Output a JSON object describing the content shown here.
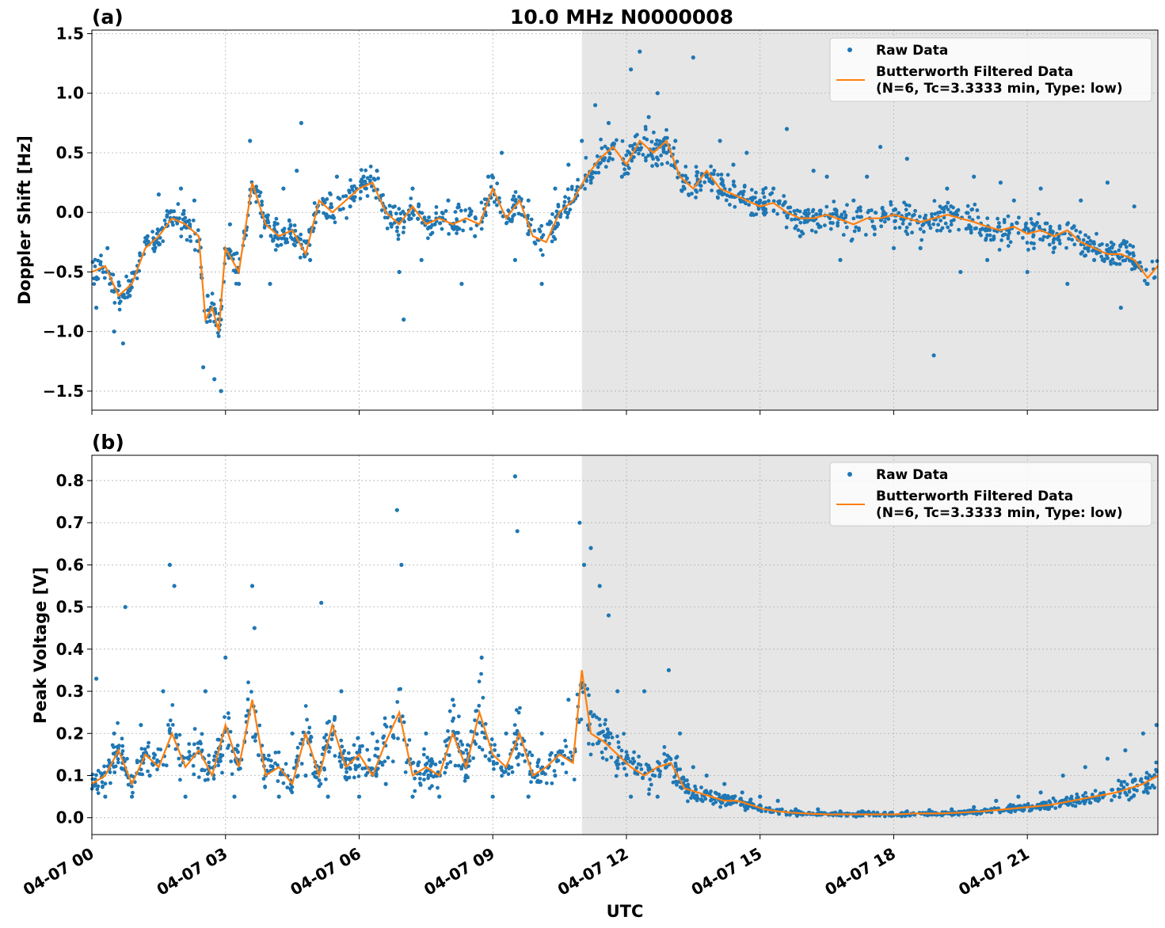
{
  "figure": {
    "title": "10.0 MHz N0000008",
    "xlabel": "UTC",
    "x_tick_labels": [
      "04-07 00",
      "04-07 03",
      "04-07 06",
      "04-07 09",
      "04-07 12",
      "04-07 15",
      "04-07 18",
      "04-07 21"
    ]
  },
  "colors": {
    "raw": "#1f77b4",
    "filtered": "#ff7f0e",
    "shade": "#e6e6e6",
    "grid": "#b0b0b0"
  },
  "legend": {
    "raw_label": "Raw Data",
    "filtered_label_line1": "Butterworth Filtered Data",
    "filtered_label_line2": "(N=6, Tc=3.3333 min, Type: low)",
    "position": "upper right"
  },
  "chart_data": [
    {
      "panel": "(a)",
      "type": "scatter",
      "ylabel": "Doppler Shift [Hz]",
      "xlim_hours_utc": [
        0,
        23.93
      ],
      "ylim": [
        -1.66,
        1.53
      ],
      "y_tick_labels": [
        "1.5",
        "1.0",
        "0.5",
        "0.0",
        "−0.5",
        "−1.0",
        "−1.5"
      ],
      "y_ticks": [
        1.5,
        1.0,
        0.5,
        0.0,
        -0.5,
        -1.0,
        -1.5
      ],
      "grid": true,
      "shaded_interval_hours_utc": [
        11.0,
        23.93
      ],
      "series": [
        {
          "name": "Butterworth Filtered Data",
          "kind": "line",
          "x": [
            0,
            0.3,
            0.6,
            0.9,
            1.2,
            1.5,
            1.8,
            2.1,
            2.4,
            2.55,
            2.7,
            2.85,
            3.0,
            3.3,
            3.6,
            3.9,
            4.2,
            4.5,
            4.8,
            5.1,
            5.4,
            5.7,
            6.0,
            6.3,
            6.6,
            6.9,
            7.2,
            7.5,
            7.8,
            8.1,
            8.4,
            8.7,
            9.0,
            9.3,
            9.6,
            9.9,
            10.2,
            10.5,
            10.8,
            11.1,
            11.4,
            11.7,
            12.0,
            12.3,
            12.6,
            12.9,
            13.2,
            13.5,
            13.8,
            14.1,
            14.4,
            14.7,
            15.0,
            15.3,
            15.6,
            15.9,
            16.2,
            16.5,
            16.8,
            17.1,
            17.4,
            17.7,
            18.0,
            18.3,
            18.6,
            18.9,
            19.2,
            19.5,
            19.8,
            20.1,
            20.4,
            20.7,
            21.0,
            21.3,
            21.6,
            21.9,
            22.2,
            22.5,
            22.8,
            23.1,
            23.4,
            23.7,
            23.93
          ],
          "y": [
            -0.5,
            -0.45,
            -0.7,
            -0.6,
            -0.3,
            -0.2,
            -0.05,
            -0.1,
            -0.2,
            -0.9,
            -0.8,
            -1.0,
            -0.3,
            -0.5,
            0.25,
            -0.1,
            -0.2,
            -0.15,
            -0.35,
            0.1,
            0.0,
            0.1,
            0.2,
            0.25,
            0.0,
            -0.1,
            0.05,
            -0.1,
            -0.05,
            -0.1,
            -0.05,
            -0.1,
            0.2,
            -0.05,
            0.1,
            -0.2,
            -0.25,
            0.0,
            0.1,
            0.3,
            0.45,
            0.55,
            0.4,
            0.6,
            0.5,
            0.6,
            0.3,
            0.2,
            0.35,
            0.2,
            0.15,
            0.1,
            0.05,
            0.08,
            0.0,
            -0.05,
            -0.05,
            -0.02,
            -0.06,
            -0.1,
            -0.05,
            -0.05,
            -0.02,
            -0.05,
            -0.08,
            -0.05,
            -0.02,
            -0.05,
            -0.08,
            -0.12,
            -0.15,
            -0.12,
            -0.18,
            -0.15,
            -0.2,
            -0.15,
            -0.25,
            -0.3,
            -0.35,
            -0.35,
            -0.4,
            -0.55,
            -0.45
          ]
        },
        {
          "name": "Raw Data",
          "kind": "points",
          "x": [
            0.1,
            0.35,
            0.5,
            0.7,
            0.85,
            1.0,
            1.25,
            1.5,
            1.75,
            2.0,
            2.3,
            2.5,
            2.6,
            2.75,
            2.9,
            3.1,
            3.3,
            3.55,
            3.8,
            4.0,
            4.3,
            4.6,
            4.7,
            4.9,
            5.2,
            5.5,
            5.8,
            6.1,
            6.4,
            6.7,
            6.9,
            7.0,
            7.2,
            7.4,
            7.7,
            8.0,
            8.3,
            8.6,
            8.9,
            9.2,
            9.5,
            9.8,
            10.1,
            10.4,
            10.7,
            11.0,
            11.3,
            11.6,
            11.9,
            12.1,
            12.3,
            12.5,
            12.7,
            12.9,
            13.1,
            13.3,
            13.5,
            13.8,
            14.1,
            14.4,
            14.7,
            15.0,
            15.3,
            15.6,
            15.9,
            16.2,
            16.5,
            16.8,
            17.1,
            17.4,
            17.7,
            18.0,
            18.3,
            18.6,
            18.9,
            19.2,
            19.5,
            19.8,
            20.1,
            20.4,
            20.7,
            21.0,
            21.3,
            21.6,
            21.9,
            22.2,
            22.5,
            22.8,
            23.1,
            23.4,
            23.7
          ],
          "y": [
            -0.8,
            -0.3,
            -1.0,
            -1.1,
            -0.7,
            -0.5,
            -0.2,
            0.15,
            0.0,
            0.2,
            0.1,
            -1.3,
            -0.7,
            -1.4,
            -1.5,
            -0.1,
            -0.6,
            0.6,
            -0.2,
            -0.6,
            0.2,
            0.35,
            0.75,
            -0.4,
            0.1,
            0.3,
            0.05,
            0.3,
            0.35,
            0.0,
            -0.5,
            -0.9,
            0.2,
            -0.4,
            -0.1,
            0.1,
            -0.6,
            -0.2,
            0.3,
            0.5,
            -0.4,
            0.1,
            -0.6,
            0.2,
            0.4,
            0.6,
            0.9,
            0.75,
            0.3,
            1.2,
            1.35,
            0.8,
            1.0,
            0.5,
            0.6,
            0.2,
            1.3,
            0.3,
            0.6,
            0.4,
            0.5,
            0.1,
            0.2,
            0.7,
            -0.2,
            0.35,
            0.3,
            -0.4,
            0.1,
            0.3,
            0.55,
            -0.3,
            0.45,
            -0.3,
            -1.2,
            0.2,
            -0.5,
            0.3,
            -0.4,
            0.25,
            0.1,
            -0.5,
            0.2,
            -0.3,
            -0.6,
            0.1,
            -0.4,
            0.25,
            -0.8,
            0.05,
            -0.6
          ]
        }
      ]
    },
    {
      "panel": "(b)",
      "type": "scatter",
      "ylabel": "Peak Voltage [V]",
      "xlim_hours_utc": [
        0,
        23.93
      ],
      "ylim": [
        -0.04,
        0.86
      ],
      "y_tick_labels": [
        "0.8",
        "0.7",
        "0.6",
        "0.5",
        "0.4",
        "0.3",
        "0.2",
        "0.1",
        "0.0"
      ],
      "y_ticks": [
        0.8,
        0.7,
        0.6,
        0.5,
        0.4,
        0.3,
        0.2,
        0.1,
        0.0
      ],
      "grid": true,
      "shaded_interval_hours_utc": [
        11.0,
        23.93
      ],
      "series": [
        {
          "name": "Butterworth Filtered Data",
          "kind": "line",
          "x": [
            0,
            0.3,
            0.6,
            0.9,
            1.2,
            1.5,
            1.8,
            2.1,
            2.4,
            2.7,
            3.0,
            3.3,
            3.6,
            3.9,
            4.2,
            4.5,
            4.8,
            5.1,
            5.4,
            5.7,
            6.0,
            6.3,
            6.6,
            6.9,
            7.2,
            7.5,
            7.8,
            8.1,
            8.4,
            8.7,
            9.0,
            9.3,
            9.6,
            9.9,
            10.2,
            10.5,
            10.8,
            11.0,
            11.2,
            11.5,
            11.8,
            12.1,
            12.4,
            12.7,
            13.0,
            13.3,
            13.6,
            13.9,
            14.2,
            14.5,
            14.8,
            15.1,
            15.4,
            15.7,
            16.0,
            16.5,
            17.0,
            17.5,
            18.0,
            18.5,
            19.0,
            19.5,
            20.0,
            20.5,
            21.0,
            21.5,
            22.0,
            22.5,
            23.0,
            23.3,
            23.6,
            23.93
          ],
          "y": [
            0.08,
            0.1,
            0.16,
            0.08,
            0.15,
            0.12,
            0.2,
            0.12,
            0.16,
            0.1,
            0.22,
            0.12,
            0.28,
            0.1,
            0.12,
            0.08,
            0.2,
            0.1,
            0.22,
            0.12,
            0.15,
            0.1,
            0.18,
            0.25,
            0.1,
            0.12,
            0.1,
            0.2,
            0.12,
            0.25,
            0.15,
            0.12,
            0.2,
            0.1,
            0.12,
            0.15,
            0.13,
            0.35,
            0.2,
            0.18,
            0.15,
            0.12,
            0.1,
            0.12,
            0.13,
            0.07,
            0.06,
            0.05,
            0.04,
            0.04,
            0.03,
            0.02,
            0.015,
            0.012,
            0.01,
            0.008,
            0.008,
            0.008,
            0.008,
            0.01,
            0.01,
            0.012,
            0.015,
            0.02,
            0.025,
            0.03,
            0.04,
            0.05,
            0.06,
            0.07,
            0.08,
            0.1
          ]
        },
        {
          "name": "Raw Data",
          "kind": "points",
          "x": [
            0.1,
            0.3,
            0.5,
            0.75,
            0.9,
            1.1,
            1.3,
            1.6,
            1.75,
            1.85,
            2.1,
            2.3,
            2.55,
            3.0,
            3.2,
            3.6,
            3.65,
            3.9,
            4.2,
            4.5,
            4.8,
            5.15,
            5.3,
            5.6,
            6.0,
            6.3,
            6.6,
            6.85,
            6.95,
            7.2,
            7.5,
            7.8,
            8.1,
            8.4,
            8.75,
            9.0,
            9.3,
            9.5,
            9.55,
            9.8,
            10.1,
            10.4,
            10.7,
            10.95,
            11.05,
            11.2,
            11.4,
            11.6,
            11.8,
            12.1,
            12.4,
            12.7,
            12.95,
            13.2,
            13.5,
            13.8,
            14.2,
            14.6,
            15.0,
            15.4,
            15.8,
            16.3,
            16.8,
            17.3,
            17.8,
            18.3,
            18.8,
            19.3,
            19.8,
            20.3,
            20.8,
            21.3,
            21.8,
            22.3,
            22.8,
            23.2,
            23.6,
            23.9
          ],
          "y": [
            0.33,
            0.05,
            0.2,
            0.5,
            0.05,
            0.22,
            0.1,
            0.3,
            0.6,
            0.55,
            0.05,
            0.15,
            0.3,
            0.38,
            0.05,
            0.55,
            0.45,
            0.1,
            0.05,
            0.2,
            0.1,
            0.51,
            0.05,
            0.3,
            0.05,
            0.2,
            0.08,
            0.73,
            0.6,
            0.05,
            0.2,
            0.05,
            0.28,
            0.1,
            0.38,
            0.05,
            0.2,
            0.81,
            0.68,
            0.05,
            0.2,
            0.1,
            0.28,
            0.7,
            0.6,
            0.64,
            0.55,
            0.48,
            0.3,
            0.05,
            0.3,
            0.05,
            0.35,
            0.2,
            0.12,
            0.1,
            0.08,
            0.06,
            0.05,
            0.04,
            0.02,
            0.02,
            0.015,
            0.015,
            0.012,
            0.015,
            0.018,
            0.02,
            0.025,
            0.04,
            0.05,
            0.06,
            0.1,
            0.12,
            0.14,
            0.16,
            0.2,
            0.22
          ]
        }
      ]
    }
  ]
}
